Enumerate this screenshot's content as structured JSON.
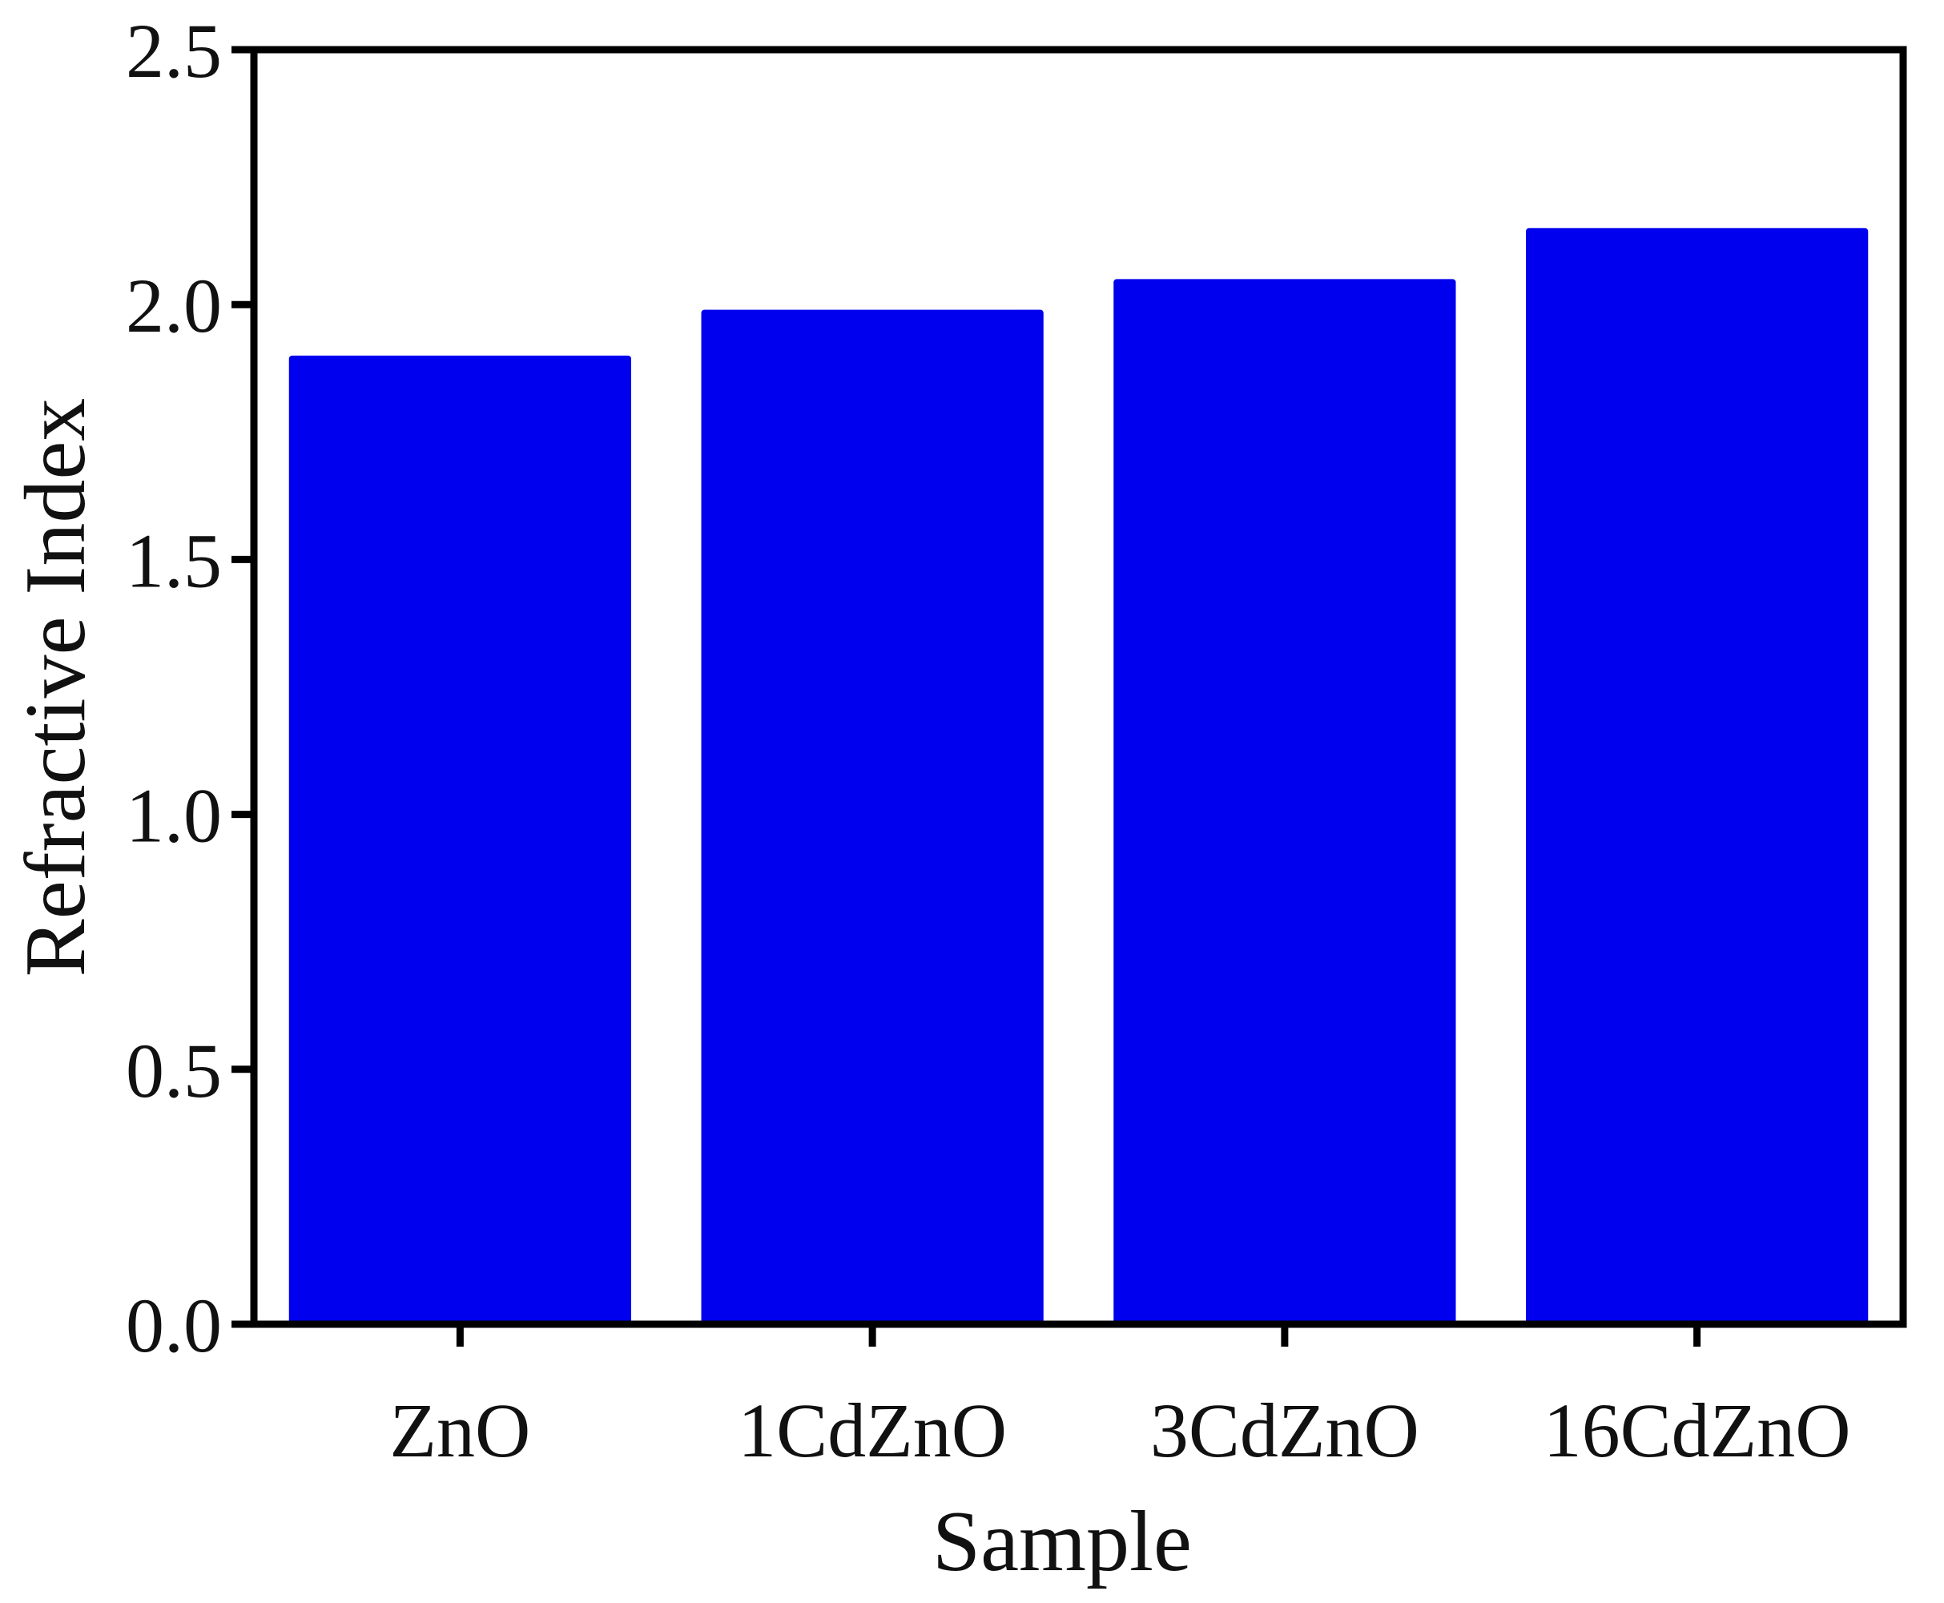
{
  "chart_data": {
    "type": "bar",
    "x_label": "Sample",
    "y_label": "Refractive Index",
    "categories": [
      "ZnO",
      "1CdZnO",
      "3CdZnO",
      "16CdZnO"
    ],
    "values": [
      1.9,
      1.99,
      2.05,
      2.15
    ],
    "color": "#0000ee",
    "ylim": [
      0,
      2.5
    ],
    "yticks": [
      {
        "value": 0,
        "label": "0.0"
      },
      0.5,
      {
        "value": 1,
        "label": "1.0"
      },
      1.5,
      {
        "value": 2,
        "label": "2.0"
      },
      2.5
    ],
    "grid": false
  }
}
